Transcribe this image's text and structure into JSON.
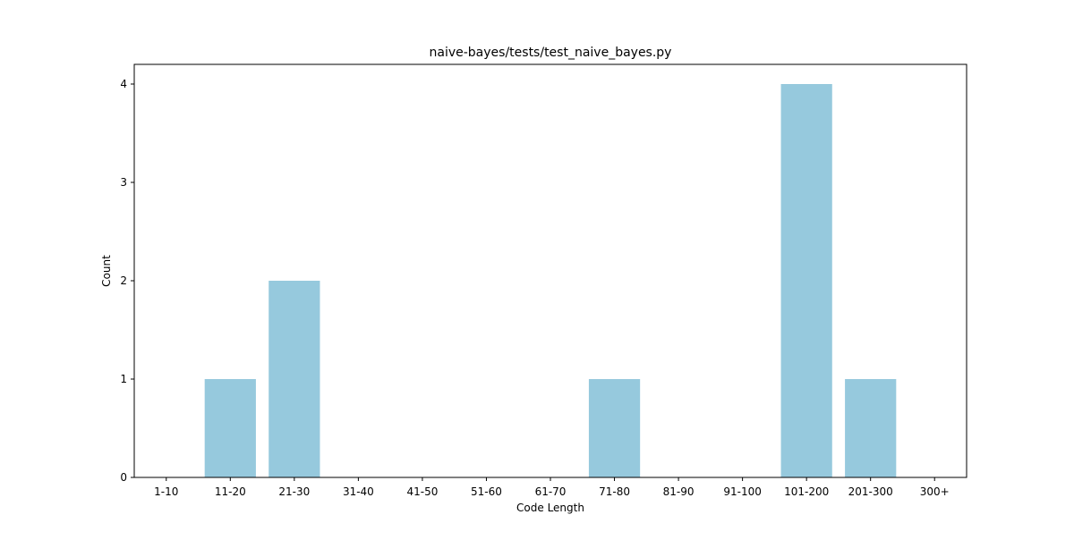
{
  "chart_data": {
    "type": "bar",
    "title": "naive-bayes/tests/test_naive_bayes.py",
    "xlabel": "Code Length",
    "ylabel": "Count",
    "categories": [
      "1-10",
      "11-20",
      "21-30",
      "31-40",
      "41-50",
      "51-60",
      "61-70",
      "71-80",
      "81-90",
      "91-100",
      "101-200",
      "201-300",
      "300+"
    ],
    "values": [
      0,
      1,
      2,
      0,
      0,
      0,
      0,
      1,
      0,
      0,
      4,
      1,
      0
    ],
    "yticks": [
      0,
      1,
      2,
      3,
      4
    ],
    "ylim": [
      0,
      4.2
    ],
    "bar_color": "#96c9dd",
    "grid": false,
    "legend": false
  }
}
